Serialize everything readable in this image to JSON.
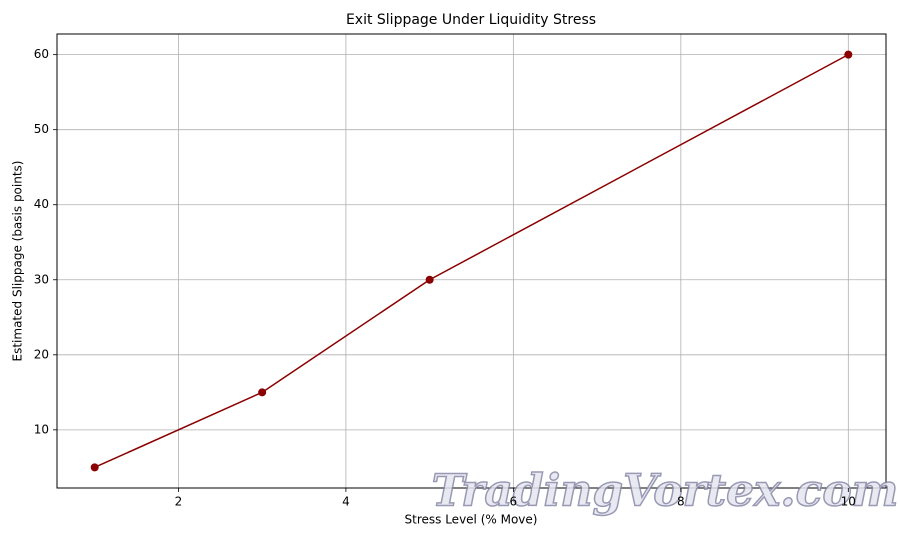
{
  "chart_data": {
    "type": "line",
    "title": "Exit Slippage Under Liquidity Stress",
    "x_label": "Stress Level (% Move)",
    "y_label": "Estimated Slippage (basis points)",
    "x": [
      1,
      3,
      5,
      10
    ],
    "series": [
      {
        "color": "#8b0000",
        "values": [
          5,
          15,
          30,
          60
        ]
      }
    ],
    "xlim": [
      0.55,
      10.45
    ],
    "xticks": [
      2,
      4,
      6,
      8,
      10
    ],
    "ylim": [
      2.25,
      62.75
    ],
    "yticks": [
      10,
      20,
      30,
      40,
      50,
      60
    ],
    "grid": true,
    "watermark": "TradingVortex.com"
  }
}
